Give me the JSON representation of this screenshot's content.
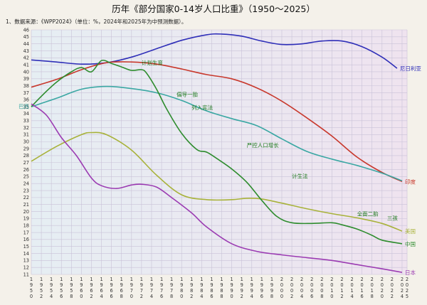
{
  "chart_data": {
    "type": "line",
    "title": "历年《部分国家0-14岁人口比重》（1950～2025）",
    "note": "1、数据来源：《WPP2024》（单位：%，2024年和2025年为中预测数据）。",
    "xlabel": "",
    "ylabel": "",
    "xlim": [
      1950,
      2025
    ],
    "ylim": [
      11,
      46
    ],
    "grid": true,
    "x_ticks": [
      1950,
      1952,
      1954,
      1956,
      1958,
      1960,
      1962,
      1964,
      1966,
      1968,
      1970,
      1972,
      1974,
      1976,
      1978,
      1980,
      1982,
      1984,
      1986,
      1988,
      1990,
      1992,
      1994,
      1996,
      1998,
      2000,
      2002,
      2004,
      2006,
      2008,
      2010,
      2012,
      2014,
      2016,
      2018,
      2020,
      2022,
      2024,
      2025
    ],
    "y_ticks": [
      11,
      12,
      13,
      14,
      15,
      16,
      17,
      18,
      19,
      20,
      21,
      22,
      23,
      24,
      25,
      26,
      27,
      28,
      29,
      30,
      31,
      32,
      33,
      34,
      35,
      36,
      37,
      38,
      39,
      40,
      41,
      42,
      43,
      44,
      45,
      46
    ],
    "series": [
      {
        "name": "尼日利亚",
        "color": "#2f2fb8",
        "points": [
          [
            1950,
            41.7
          ],
          [
            1955,
            41.4
          ],
          [
            1960,
            41.1
          ],
          [
            1965,
            41.3
          ],
          [
            1970,
            42.1
          ],
          [
            1975,
            43.3
          ],
          [
            1980,
            44.5
          ],
          [
            1985,
            45.3
          ],
          [
            1988,
            45.4
          ],
          [
            1992,
            45.1
          ],
          [
            1996,
            44.4
          ],
          [
            2000,
            43.9
          ],
          [
            2004,
            44.0
          ],
          [
            2008,
            44.4
          ],
          [
            2012,
            44.4
          ],
          [
            2016,
            43.6
          ],
          [
            2020,
            42.1
          ],
          [
            2023,
            40.5
          ]
        ]
      },
      {
        "name": "印度",
        "color": "#c8382c",
        "points": [
          [
            1950,
            37.8
          ],
          [
            1955,
            38.9
          ],
          [
            1960,
            40.3
          ],
          [
            1965,
            41.3
          ],
          [
            1970,
            41.4
          ],
          [
            1975,
            41.1
          ],
          [
            1980,
            40.4
          ],
          [
            1985,
            39.6
          ],
          [
            1990,
            39.0
          ],
          [
            1995,
            37.7
          ],
          [
            2000,
            35.8
          ],
          [
            2005,
            33.4
          ],
          [
            2010,
            30.8
          ],
          [
            2015,
            27.8
          ],
          [
            2020,
            25.6
          ],
          [
            2024,
            24.3
          ]
        ]
      },
      {
        "name": "巴西",
        "color": "#3aa7a3",
        "points": [
          [
            1950,
            35.0
          ],
          [
            1955,
            36.2
          ],
          [
            1960,
            37.5
          ],
          [
            1965,
            37.9
          ],
          [
            1970,
            37.6
          ],
          [
            1975,
            37.0
          ],
          [
            1980,
            35.9
          ],
          [
            1985,
            34.4
          ],
          [
            1990,
            33.3
          ],
          [
            1995,
            32.3
          ],
          [
            2000,
            30.4
          ],
          [
            2005,
            28.6
          ],
          [
            2010,
            27.5
          ],
          [
            2015,
            26.6
          ],
          [
            2020,
            25.5
          ],
          [
            2024,
            24.4
          ]
        ]
      },
      {
        "name": "美国",
        "color": "#a8b23a",
        "points": [
          [
            1950,
            27.2
          ],
          [
            1955,
            29.3
          ],
          [
            1960,
            31.0
          ],
          [
            1962,
            31.3
          ],
          [
            1965,
            31.0
          ],
          [
            1970,
            28.8
          ],
          [
            1975,
            25.2
          ],
          [
            1980,
            22.4
          ],
          [
            1985,
            21.7
          ],
          [
            1990,
            21.7
          ],
          [
            1993,
            21.9
          ],
          [
            1996,
            21.8
          ],
          [
            2000,
            21.2
          ],
          [
            2005,
            20.4
          ],
          [
            2010,
            19.7
          ],
          [
            2015,
            19.1
          ],
          [
            2020,
            18.3
          ],
          [
            2024,
            17.2
          ]
        ]
      },
      {
        "name": "中国",
        "color": "#2e8c2e",
        "points": [
          [
            1950,
            35.0
          ],
          [
            1952,
            36.5
          ],
          [
            1955,
            38.5
          ],
          [
            1958,
            40.0
          ],
          [
            1960,
            40.6
          ],
          [
            1962,
            40.0
          ],
          [
            1964,
            41.6
          ],
          [
            1966,
            41.2
          ],
          [
            1968,
            40.7
          ],
          [
            1970,
            40.2
          ],
          [
            1972,
            40.3
          ],
          [
            1973,
            39.8
          ],
          [
            1975,
            37.5
          ],
          [
            1977,
            34.7
          ],
          [
            1980,
            31.2
          ],
          [
            1983,
            28.9
          ],
          [
            1985,
            28.5
          ],
          [
            1987,
            27.6
          ],
          [
            1990,
            26.1
          ],
          [
            1993,
            24.2
          ],
          [
            1996,
            21.6
          ],
          [
            1999,
            19.3
          ],
          [
            2002,
            18.4
          ],
          [
            2006,
            18.3
          ],
          [
            2010,
            18.4
          ],
          [
            2012,
            18.1
          ],
          [
            2015,
            17.5
          ],
          [
            2018,
            16.6
          ],
          [
            2020,
            15.9
          ],
          [
            2024,
            15.4
          ]
        ]
      },
      {
        "name": "日本",
        "color": "#9b3bb2",
        "points": [
          [
            1950,
            35.4
          ],
          [
            1953,
            33.8
          ],
          [
            1956,
            30.6
          ],
          [
            1959,
            28.0
          ],
          [
            1962,
            24.8
          ],
          [
            1964,
            23.7
          ],
          [
            1967,
            23.3
          ],
          [
            1970,
            23.8
          ],
          [
            1972,
            23.9
          ],
          [
            1975,
            23.5
          ],
          [
            1978,
            22.0
          ],
          [
            1982,
            19.8
          ],
          [
            1985,
            17.8
          ],
          [
            1990,
            15.4
          ],
          [
            1995,
            14.3
          ],
          [
            2000,
            13.8
          ],
          [
            2005,
            13.4
          ],
          [
            2010,
            13.0
          ],
          [
            2015,
            12.4
          ],
          [
            2020,
            11.8
          ],
          [
            2024,
            11.3
          ]
        ]
      }
    ],
    "annotations": [
      {
        "text": "计划生育",
        "x": 1972,
        "y": 41.0
      },
      {
        "text": "倡导一胎",
        "x": 1979,
        "y": 36.5
      },
      {
        "text": "列入宪法",
        "x": 1982,
        "y": 34.6
      },
      {
        "text": "严控人口增长",
        "x": 1993,
        "y": 29.2
      },
      {
        "text": "计生法",
        "x": 2002,
        "y": 24.8
      },
      {
        "text": "全面二胎",
        "x": 2015,
        "y": 19.4
      },
      {
        "text": "三孩",
        "x": 2021,
        "y": 18.8
      }
    ]
  }
}
